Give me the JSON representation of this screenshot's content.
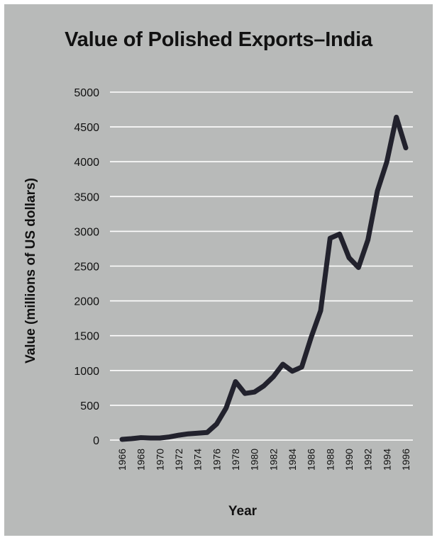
{
  "chart_data": {
    "type": "line",
    "title": "Value of Polished Exports–India",
    "xlabel": "Year",
    "ylabel": "Value (millions of US dollars)",
    "xlim": [
      1966,
      1996
    ],
    "ylim": [
      0,
      5000
    ],
    "x_ticks": [
      "1966",
      "1968",
      "1970",
      "1972",
      "1974",
      "1976",
      "1978",
      "1980",
      "1982",
      "1984",
      "1986",
      "1988",
      "1990",
      "1992",
      "1994",
      "1996"
    ],
    "y_ticks": [
      "0",
      "500",
      "1000",
      "1500",
      "2000",
      "2500",
      "3000",
      "3500",
      "4000",
      "4500",
      "5000"
    ],
    "grid": true,
    "series": [
      {
        "x": [
          1966,
          1967,
          1968,
          1969,
          1970,
          1971,
          1972,
          1973,
          1974,
          1975,
          1976,
          1977,
          1978,
          1979,
          1980,
          1981,
          1982,
          1983,
          1984,
          1985,
          1986,
          1987,
          1988,
          1989,
          1990,
          1991,
          1992,
          1993,
          1994,
          1995,
          1996
        ],
        "values": [
          10,
          20,
          35,
          30,
          30,
          45,
          70,
          90,
          100,
          110,
          230,
          460,
          840,
          670,
          690,
          780,
          910,
          1090,
          990,
          1050,
          1480,
          1860,
          2900,
          2960,
          2620,
          2480,
          2880,
          3580,
          4000,
          4640,
          4200
        ]
      }
    ],
    "colors": {
      "background": "#b8bab9",
      "grid": "#ffffff",
      "line": "#22222d"
    }
  }
}
